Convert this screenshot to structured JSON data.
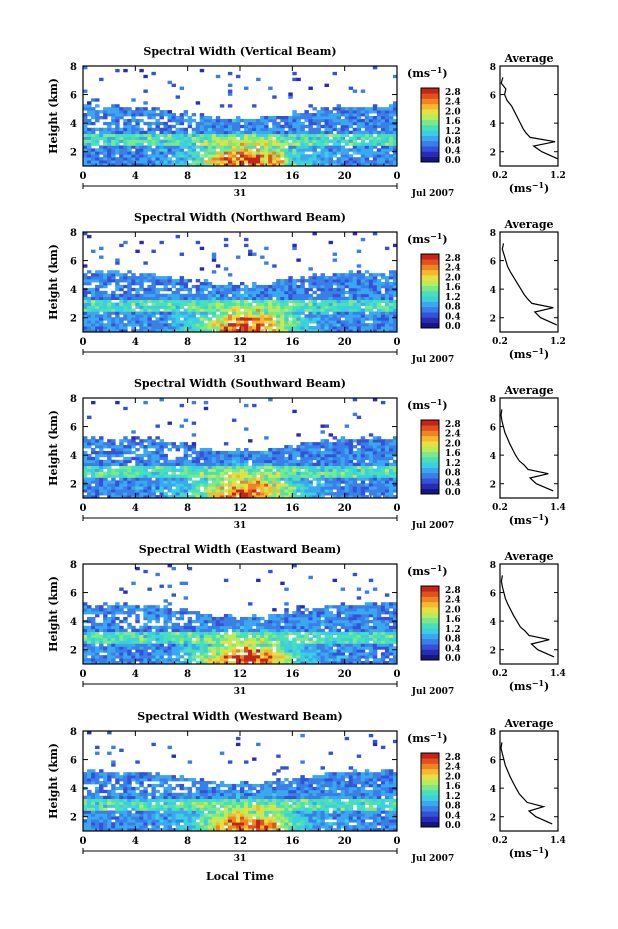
{
  "figure": {
    "x_axis_label": "Local Time",
    "date_label": "Jul 2007",
    "day_label": "31",
    "height_label": "Height (km)",
    "unit_label": "(ms",
    "unit_exp": "−1",
    "average_title": "Average"
  },
  "colorbar": {
    "ticks": [
      "2.8",
      "2.4",
      "2.0",
      "1.6",
      "1.2",
      "0.8",
      "0.4",
      "0.0"
    ],
    "colors": [
      "#14187a",
      "#2a2ab8",
      "#3452d8",
      "#3a7ee8",
      "#3aa8f0",
      "#3ccfe0",
      "#48e0b8",
      "#7ce88a",
      "#b8ec5a",
      "#e8e040",
      "#f6b830",
      "#f08424",
      "#e4501c",
      "#c4241a"
    ]
  },
  "chart_data": [
    {
      "type": "heatmap",
      "title": "Spectral Width (Vertical Beam)",
      "xlabel": "",
      "ylabel": "Height (km)",
      "xlim": [
        0,
        24
      ],
      "ylim": [
        1,
        8
      ],
      "xticks": [
        "0",
        "4",
        "8",
        "12",
        "16",
        "20",
        "0"
      ],
      "yticks": [
        "2",
        "4",
        "6",
        "8"
      ],
      "colorbar_range": [
        0.0,
        2.8
      ],
      "profile": {
        "title": "Average",
        "xlabel": "(ms−1)",
        "xticks": [
          "0.2",
          "1.2"
        ],
        "xlim": [
          0.2,
          1.2
        ],
        "heights": [
          1.5,
          2.0,
          2.4,
          2.7,
          3.0,
          3.3,
          3.6,
          4.0,
          4.4,
          4.8,
          5.2,
          5.6,
          6.0,
          6.4,
          6.8,
          7.2
        ],
        "values": [
          1.2,
          0.92,
          0.78,
          1.15,
          0.72,
          0.65,
          0.6,
          0.55,
          0.5,
          0.45,
          0.4,
          0.32,
          0.28,
          0.3,
          0.22,
          0.25
        ]
      }
    },
    {
      "type": "heatmap",
      "title": "Spectral Width (Northward Beam)",
      "xlabel": "",
      "ylabel": "Height (km)",
      "xlim": [
        0,
        24
      ],
      "ylim": [
        1,
        8
      ],
      "xticks": [
        "0",
        "4",
        "8",
        "12",
        "16",
        "20",
        "0"
      ],
      "yticks": [
        "2",
        "4",
        "6",
        "8"
      ],
      "colorbar_range": [
        0.0,
        2.8
      ],
      "profile": {
        "title": "Average",
        "xlabel": "(ms−1)",
        "xticks": [
          "0.2",
          "1.2"
        ],
        "xlim": [
          0.2,
          1.2
        ],
        "heights": [
          1.5,
          2.0,
          2.4,
          2.7,
          3.0,
          3.3,
          3.6,
          4.0,
          4.4,
          4.8,
          5.2,
          5.6,
          6.0,
          6.4,
          6.8,
          7.2
        ],
        "values": [
          1.18,
          0.9,
          0.8,
          1.12,
          0.75,
          0.68,
          0.62,
          0.56,
          0.5,
          0.44,
          0.38,
          0.33,
          0.3,
          0.27,
          0.24,
          0.26
        ]
      }
    },
    {
      "type": "heatmap",
      "title": "Spectral Width (Southward Beam)",
      "xlabel": "",
      "ylabel": "Height (km)",
      "xlim": [
        0,
        24
      ],
      "ylim": [
        1,
        8
      ],
      "xticks": [
        "0",
        "4",
        "8",
        "12",
        "16",
        "20",
        "0"
      ],
      "yticks": [
        "2",
        "4",
        "6",
        "8"
      ],
      "colorbar_range": [
        0.0,
        2.8
      ],
      "profile": {
        "title": "Average",
        "xlabel": "(ms−1)",
        "xticks": [
          "0.2",
          "1.4"
        ],
        "xlim": [
          0.2,
          1.4
        ],
        "heights": [
          1.5,
          2.0,
          2.4,
          2.7,
          3.0,
          3.3,
          3.6,
          4.0,
          4.4,
          4.8,
          5.2,
          5.6,
          6.0,
          6.4,
          6.8,
          7.2
        ],
        "values": [
          1.3,
          0.95,
          0.82,
          1.2,
          0.78,
          0.7,
          0.6,
          0.52,
          0.46,
          0.4,
          0.35,
          0.3,
          0.27,
          0.24,
          0.22,
          0.24
        ]
      }
    },
    {
      "type": "heatmap",
      "title": "Spectral Width (Eastward Beam)",
      "xlabel": "",
      "ylabel": "Height (km)",
      "xlim": [
        0,
        24
      ],
      "ylim": [
        1,
        8
      ],
      "xticks": [
        "0",
        "4",
        "8",
        "12",
        "16",
        "20",
        "0"
      ],
      "yticks": [
        "2",
        "4",
        "6",
        "8"
      ],
      "colorbar_range": [
        0.0,
        2.8
      ],
      "profile": {
        "title": "Average",
        "xlabel": "(ms−1)",
        "xticks": [
          "0.2",
          "1.4"
        ],
        "xlim": [
          0.2,
          1.4
        ],
        "heights": [
          1.5,
          2.0,
          2.4,
          2.7,
          3.0,
          3.3,
          3.6,
          4.0,
          4.4,
          4.8,
          5.2,
          5.6,
          6.0,
          6.4,
          6.8,
          7.2
        ],
        "values": [
          1.32,
          0.98,
          0.85,
          1.22,
          0.8,
          0.72,
          0.62,
          0.55,
          0.48,
          0.42,
          0.36,
          0.31,
          0.28,
          0.25,
          0.23,
          0.25
        ]
      }
    },
    {
      "type": "heatmap",
      "title": "Spectral Width (Westward Beam)",
      "xlabel": "Local Time",
      "ylabel": "Height (km)",
      "xlim": [
        0,
        24
      ],
      "ylim": [
        1,
        8
      ],
      "xticks": [
        "0",
        "4",
        "8",
        "12",
        "16",
        "20",
        "0"
      ],
      "yticks": [
        "2",
        "4",
        "6",
        "8"
      ],
      "colorbar_range": [
        0.0,
        2.8
      ],
      "profile": {
        "title": "Average",
        "xlabel": "(ms−1)",
        "xticks": [
          "0.2",
          "1.4"
        ],
        "xlim": [
          0.2,
          1.4
        ],
        "heights": [
          1.5,
          2.0,
          2.4,
          2.7,
          3.0,
          3.3,
          3.6,
          4.0,
          4.4,
          4.8,
          5.2,
          5.6,
          6.0,
          6.4,
          6.8,
          7.2
        ],
        "values": [
          1.28,
          0.94,
          0.8,
          1.1,
          0.76,
          0.68,
          0.6,
          0.53,
          0.47,
          0.41,
          0.36,
          0.31,
          0.28,
          0.25,
          0.22,
          0.24
        ]
      }
    }
  ]
}
